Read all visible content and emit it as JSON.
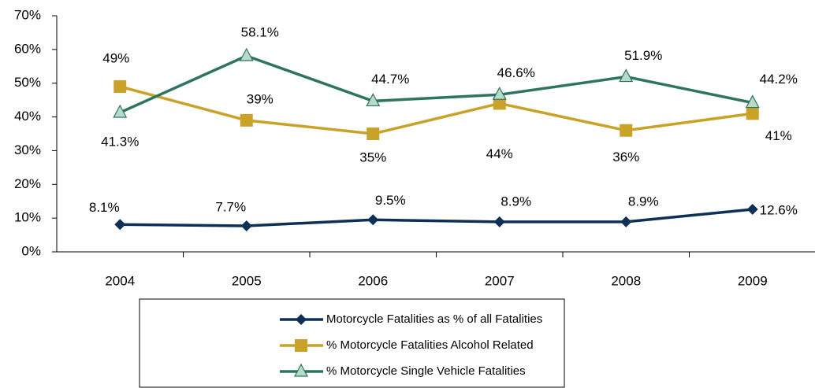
{
  "chart_data": {
    "type": "line",
    "categories": [
      "2004",
      "2005",
      "2006",
      "2007",
      "2008",
      "2009"
    ],
    "ylim": [
      0,
      70
    ],
    "yticks": [
      {
        "value": 0,
        "label": "0%"
      },
      {
        "value": 10,
        "label": "10%"
      },
      {
        "value": 20,
        "label": "20%"
      },
      {
        "value": 30,
        "label": "30%"
      },
      {
        "value": 40,
        "label": "40%"
      },
      {
        "value": 50,
        "label": "50%"
      },
      {
        "value": 60,
        "label": "60%"
      },
      {
        "value": 70,
        "label": "70%"
      }
    ],
    "legend": "bottom",
    "series": [
      {
        "name": "Motorcycle Fatalities as % of all Fatalities",
        "color": "#0d3057",
        "marker": "diamond",
        "values": [
          8.1,
          7.7,
          9.5,
          8.9,
          8.9,
          12.6
        ],
        "value_labels": [
          "8.1%",
          "7.7%",
          "9.5%",
          "8.9%",
          "8.9%",
          "12.6%"
        ]
      },
      {
        "name": "% Motorcycle Fatalities Alcohol Related",
        "color": "#c9a227",
        "marker": "square",
        "values": [
          49,
          39,
          35,
          44,
          36,
          41
        ],
        "value_labels": [
          "49%",
          "39%",
          "35%",
          "44%",
          "36%",
          "41%"
        ]
      },
      {
        "name": "% Motorcycle Single Vehicle Fatalities",
        "color": "#2e7560",
        "marker": "triangle",
        "values": [
          41.3,
          58.1,
          44.7,
          46.6,
          51.9,
          44.2
        ],
        "value_labels": [
          "41.3%",
          "58.1%",
          "44.7%",
          "46.6%",
          "51.9%",
          "44.2%"
        ]
      }
    ]
  }
}
